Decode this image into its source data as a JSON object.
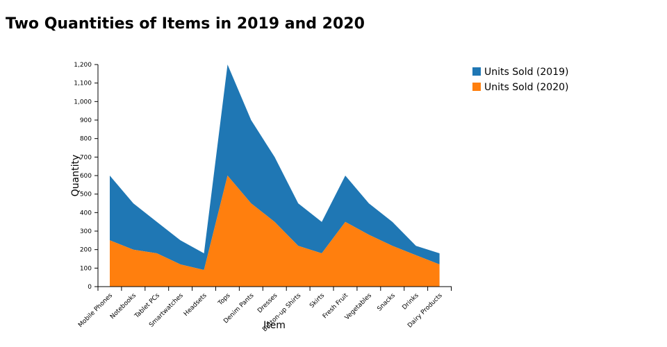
{
  "chart_data": {
    "type": "area",
    "stacked": true,
    "title": "Two Quantities of Items in 2019 and 2020",
    "xlabel": "Item",
    "ylabel": "Quantity",
    "ylim": [
      0,
      1200
    ],
    "y_ticks": [
      "0",
      "100",
      "200",
      "300",
      "400",
      "500",
      "600",
      "700",
      "800",
      "900",
      "1,000",
      "1,100",
      "1,200"
    ],
    "grid": false,
    "legend_position": "top-right",
    "categories": [
      "Mobile Phones",
      "Notebooks",
      "Tablet PCs",
      "Smartwatches",
      "Headsets",
      "Tops",
      "Denim Pants",
      "Dresses",
      "Button-up Shirts",
      "Skirts",
      "Fresh Fruit",
      "Vegetables",
      "Snacks",
      "Drinks",
      "Dairy Products"
    ],
    "series": [
      {
        "name": "Units Sold (2019)",
        "color": "#1f77b4",
        "values": [
          350,
          250,
          170,
          130,
          90,
          600,
          450,
          350,
          230,
          170,
          250,
          170,
          130,
          50,
          60
        ]
      },
      {
        "name": "Units Sold (2020)",
        "color": "#ff7f0e",
        "values": [
          250,
          200,
          180,
          120,
          90,
          600,
          450,
          350,
          220,
          180,
          350,
          280,
          220,
          170,
          120
        ]
      }
    ]
  }
}
